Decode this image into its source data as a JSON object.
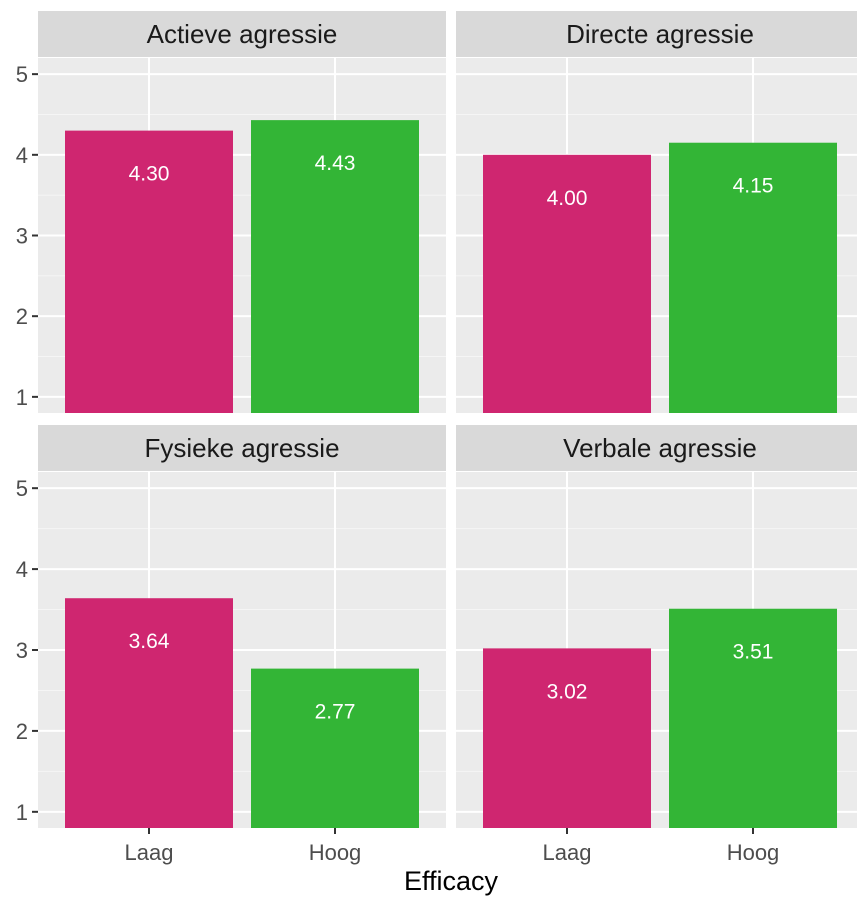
{
  "chart_data": {
    "type": "bar",
    "facets": [
      {
        "title": "Actieve agressie",
        "categories": [
          "Laag",
          "Hoog"
        ],
        "values": [
          4.3,
          4.43
        ],
        "labels": [
          "4.30",
          "4.43"
        ]
      },
      {
        "title": "Directe agressie",
        "categories": [
          "Laag",
          "Hoog"
        ],
        "values": [
          4.0,
          4.15
        ],
        "labels": [
          "4.00",
          "4.15"
        ]
      },
      {
        "title": "Fysieke agressie",
        "categories": [
          "Laag",
          "Hoog"
        ],
        "values": [
          3.64,
          2.77
        ],
        "labels": [
          "3.64",
          "2.77"
        ]
      },
      {
        "title": "Verbale agressie",
        "categories": [
          "Laag",
          "Hoog"
        ],
        "values": [
          3.02,
          3.51
        ],
        "labels": [
          "3.02",
          "3.51"
        ]
      }
    ],
    "xlabel": "Efficacy",
    "ylabel": "",
    "yticks": [
      "1",
      "2",
      "3",
      "4",
      "5"
    ],
    "ylim": [
      0.8,
      5.2
    ],
    "grid": true,
    "legend": "none",
    "colors": {
      "Laag": "#cf2670",
      "Hoog": "#33b536"
    },
    "panel_background": "#ebebeb",
    "strip_background": "#d9d9d9"
  }
}
